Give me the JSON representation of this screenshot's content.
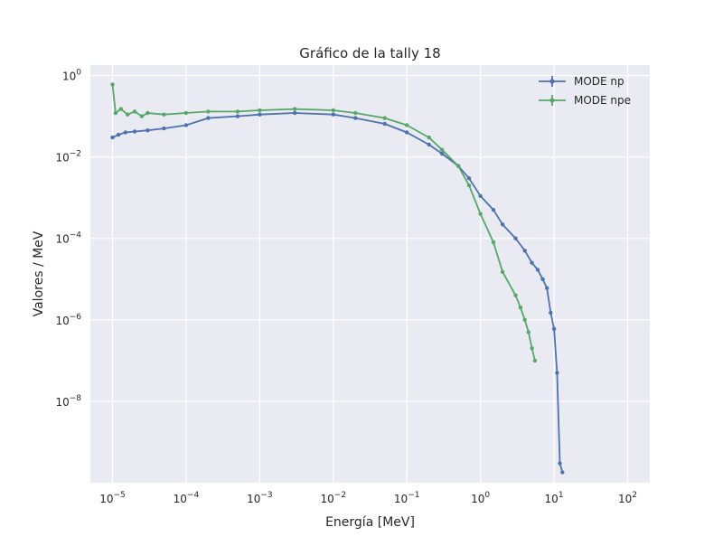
{
  "chart_data": {
    "type": "line",
    "title": "Gráfico de la tally 18",
    "xlabel": "Energía [MeV]",
    "ylabel": "Valores / MeV",
    "xscale": "log",
    "yscale": "log",
    "xlim": [
      5e-06,
      200
    ],
    "ylim": [
      1e-10,
      1.8
    ],
    "grid": true,
    "legend_position": "top-right",
    "x_ticks": [
      {
        "value": 1e-05,
        "base": "10",
        "exp": "−5"
      },
      {
        "value": 0.0001,
        "base": "10",
        "exp": "−4"
      },
      {
        "value": 0.001,
        "base": "10",
        "exp": "−3"
      },
      {
        "value": 0.01,
        "base": "10",
        "exp": "−2"
      },
      {
        "value": 0.1,
        "base": "10",
        "exp": "−1"
      },
      {
        "value": 1,
        "base": "10",
        "exp": "0"
      },
      {
        "value": 10,
        "base": "10",
        "exp": "1"
      },
      {
        "value": 100,
        "base": "10",
        "exp": "2"
      }
    ],
    "y_ticks": [
      {
        "value": 1e-08,
        "base": "10",
        "exp": "−8"
      },
      {
        "value": 1e-06,
        "base": "10",
        "exp": "−6"
      },
      {
        "value": 0.0001,
        "base": "10",
        "exp": "−4"
      },
      {
        "value": 0.01,
        "base": "10",
        "exp": "−2"
      },
      {
        "value": 1,
        "base": "10",
        "exp": "0"
      }
    ],
    "series": [
      {
        "name": "MODE np",
        "color": "#4c72b0",
        "x": [
          1e-05,
          1.2e-05,
          1.5e-05,
          2e-05,
          3e-05,
          5e-05,
          0.0001,
          0.0002,
          0.0005,
          0.001,
          0.003,
          0.01,
          0.02,
          0.05,
          0.1,
          0.2,
          0.3,
          0.5,
          0.7,
          1,
          1.5,
          2,
          3,
          4,
          5,
          6,
          7,
          8,
          9,
          10,
          11,
          12,
          13
        ],
        "y": [
          0.03,
          0.035,
          0.04,
          0.042,
          0.045,
          0.05,
          0.06,
          0.09,
          0.1,
          0.11,
          0.12,
          0.11,
          0.09,
          0.065,
          0.04,
          0.02,
          0.012,
          0.006,
          0.003,
          0.0011,
          0.0005,
          0.00022,
          0.0001,
          5e-05,
          2.5e-05,
          1.7e-05,
          1e-05,
          6e-06,
          1.5e-06,
          6e-07,
          5e-08,
          3e-10,
          1.8e-10
        ]
      },
      {
        "name": "MODE npe",
        "color": "#55a868",
        "x": [
          1e-05,
          1.1e-05,
          1.3e-05,
          1.6e-05,
          2e-05,
          2.5e-05,
          3e-05,
          5e-05,
          0.0001,
          0.0002,
          0.0005,
          0.001,
          0.003,
          0.01,
          0.02,
          0.05,
          0.1,
          0.2,
          0.3,
          0.5,
          0.7,
          1,
          1.5,
          2,
          3,
          3.5,
          4,
          4.5,
          5,
          5.5
        ],
        "y": [
          0.6,
          0.12,
          0.15,
          0.11,
          0.13,
          0.1,
          0.12,
          0.11,
          0.12,
          0.13,
          0.13,
          0.14,
          0.15,
          0.14,
          0.12,
          0.09,
          0.06,
          0.03,
          0.015,
          0.006,
          0.002,
          0.0004,
          8e-05,
          1.5e-05,
          4e-06,
          2e-06,
          1e-06,
          5e-07,
          2e-07,
          1e-07
        ]
      }
    ]
  }
}
